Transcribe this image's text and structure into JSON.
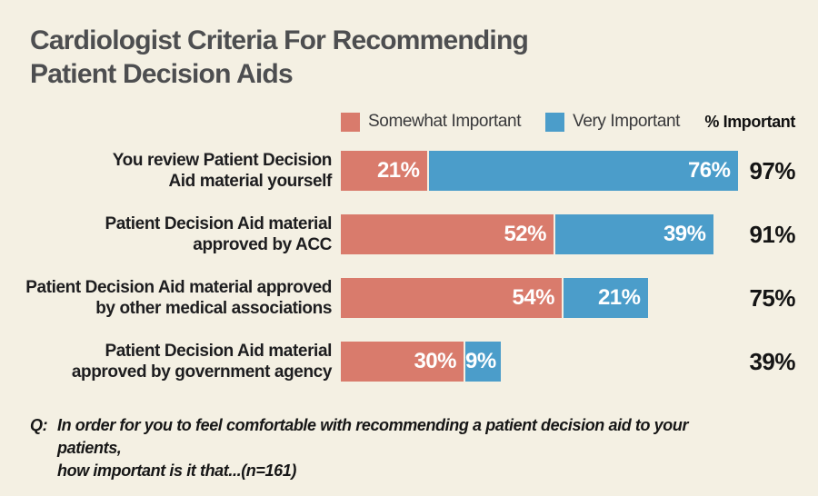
{
  "title": {
    "line1": "Cardiologist Criteria For Recommending",
    "line2": "Patient Decision Aids"
  },
  "legend": {
    "somewhat_label": "Somewhat Important",
    "very_label": "Very Important",
    "totals_column_label": "% Important"
  },
  "colors": {
    "somewhat": "#d97b6c",
    "very": "#4b9dca",
    "background": "#f4f0e3",
    "title_text": "#4d4e50"
  },
  "chart_data": {
    "type": "bar",
    "orientation": "horizontal",
    "stacked": true,
    "title": "Cardiologist Criteria For Recommending Patient Decision Aids",
    "categories": [
      "You review Patient Decision Aid material yourself",
      "Patient Decision Aid material approved by ACC",
      "Patient Decision Aid material approved by other medical associations",
      "Patient Decision Aid material approved by government agency"
    ],
    "series": [
      {
        "name": "Somewhat Important",
        "color": "#d97b6c",
        "values": [
          21,
          52,
          54,
          30
        ]
      },
      {
        "name": "Very Important",
        "color": "#4b9dca",
        "values": [
          76,
          39,
          21,
          9
        ]
      }
    ],
    "totals_label": "% Important",
    "totals": [
      97,
      91,
      75,
      39
    ],
    "unit": "%",
    "xlim": [
      0,
      100
    ],
    "grid": false,
    "legend_position": "top"
  },
  "rows": [
    {
      "label_line1": "You review Patient Decision",
      "label_line2": "Aid material yourself",
      "somewhat_value": 21,
      "somewhat_label": "21%",
      "very_value": 76,
      "very_label": "76%",
      "total": "97%"
    },
    {
      "label_line1": "Patient Decision Aid material",
      "label_line2": "approved by ACC",
      "somewhat_value": 52,
      "somewhat_label": "52%",
      "very_value": 39,
      "very_label": "39%",
      "total": "91%"
    },
    {
      "label_line1": "Patient Decision Aid material approved",
      "label_line2": "by other medical associations",
      "somewhat_value": 54,
      "somewhat_label": "54%",
      "very_value": 21,
      "very_label": "21%",
      "total": "75%"
    },
    {
      "label_line1": "Patient Decision Aid material",
      "label_line2": "approved by government agency",
      "somewhat_value": 30,
      "somewhat_label": "30%",
      "very_value": 9,
      "very_label": "9%",
      "total": "39%"
    }
  ],
  "footer": {
    "prefix": "Q:",
    "line1": "In order for you to feel comfortable with recommending a patient decision aid to your patients,",
    "line2": "how important is it that...(n=161)"
  }
}
